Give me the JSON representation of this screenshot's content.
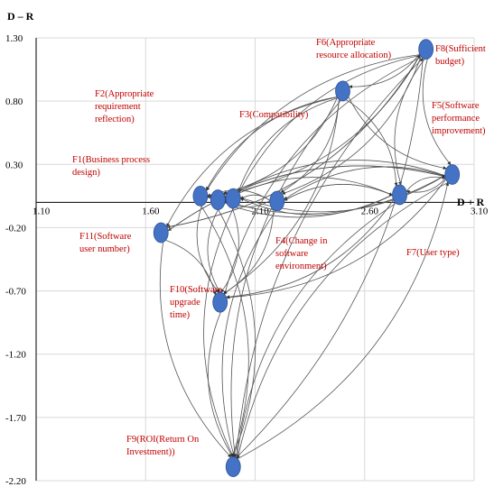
{
  "chart_data": {
    "type": "scatter",
    "xlabel": "D + R",
    "ylabel": "D – R",
    "xlim": [
      1.1,
      3.1
    ],
    "ylim": [
      -2.2,
      1.3
    ],
    "x_ticks": [
      "1.10",
      "1.60",
      "2.10",
      "2.60",
      "3.10"
    ],
    "y_ticks": [
      "1.30",
      "0.80",
      "0.30",
      "-0.20",
      "-0.70",
      "-1.20",
      "-1.70",
      "-2.20"
    ],
    "grid": true,
    "colors": {
      "node": "#4472c4",
      "label": "#c00000",
      "edge": "#555555"
    },
    "points": [
      {
        "id": "F1",
        "label": "F1(Business process design)",
        "x": 1.85,
        "y": 0.05
      },
      {
        "id": "F2",
        "label": "F2(Appropriate requirement reflection)",
        "x": 1.93,
        "y": 0.02
      },
      {
        "id": "F3",
        "label": "F3(Compatibility)",
        "x": 2.0,
        "y": 0.03
      },
      {
        "id": "F4",
        "label": "F4(Change in software environment)",
        "x": 2.2,
        "y": 0.01
      },
      {
        "id": "F5",
        "label": "F5(Software performance improvement)",
        "x": 3.0,
        "y": 0.22
      },
      {
        "id": "F6",
        "label": "F6(Appropriate resource allocation)",
        "x": 2.5,
        "y": 0.88
      },
      {
        "id": "F7",
        "label": "F7(User type)",
        "x": 2.76,
        "y": 0.06
      },
      {
        "id": "F8",
        "label": "F8(Sufficient budget)",
        "x": 2.88,
        "y": 1.21
      },
      {
        "id": "F9",
        "label": "F9(ROI(Return On Investment))",
        "x": 2.0,
        "y": -2.09
      },
      {
        "id": "F10",
        "label": "F10(Software upgrade time)",
        "x": 1.94,
        "y": -0.79
      },
      {
        "id": "F11",
        "label": "F11(Software user number)",
        "x": 1.67,
        "y": -0.24
      }
    ],
    "edges": [
      [
        "F8",
        "F1"
      ],
      [
        "F8",
        "F2"
      ],
      [
        "F8",
        "F3"
      ],
      [
        "F8",
        "F4"
      ],
      [
        "F8",
        "F5"
      ],
      [
        "F8",
        "F6"
      ],
      [
        "F8",
        "F7"
      ],
      [
        "F8",
        "F9"
      ],
      [
        "F8",
        "F10"
      ],
      [
        "F8",
        "F11"
      ],
      [
        "F6",
        "F1"
      ],
      [
        "F6",
        "F2"
      ],
      [
        "F6",
        "F3"
      ],
      [
        "F6",
        "F4"
      ],
      [
        "F6",
        "F5"
      ],
      [
        "F6",
        "F7"
      ],
      [
        "F6",
        "F9"
      ],
      [
        "F6",
        "F10"
      ],
      [
        "F6",
        "F11"
      ],
      [
        "F5",
        "F1"
      ],
      [
        "F5",
        "F2"
      ],
      [
        "F5",
        "F3"
      ],
      [
        "F5",
        "F4"
      ],
      [
        "F5",
        "F7"
      ],
      [
        "F5",
        "F9"
      ],
      [
        "F5",
        "F10"
      ],
      [
        "F5",
        "F11"
      ],
      [
        "F7",
        "F1"
      ],
      [
        "F7",
        "F2"
      ],
      [
        "F7",
        "F3"
      ],
      [
        "F7",
        "F4"
      ],
      [
        "F7",
        "F5"
      ],
      [
        "F7",
        "F9"
      ],
      [
        "F7",
        "F10"
      ],
      [
        "F4",
        "F1"
      ],
      [
        "F4",
        "F2"
      ],
      [
        "F4",
        "F3"
      ],
      [
        "F4",
        "F7"
      ],
      [
        "F4",
        "F9"
      ],
      [
        "F4",
        "F10"
      ],
      [
        "F3",
        "F1"
      ],
      [
        "F3",
        "F2"
      ],
      [
        "F3",
        "F9"
      ],
      [
        "F3",
        "F10"
      ],
      [
        "F2",
        "F1"
      ],
      [
        "F2",
        "F9"
      ],
      [
        "F2",
        "F10"
      ],
      [
        "F1",
        "F9"
      ],
      [
        "F1",
        "F10"
      ],
      [
        "F1",
        "F3"
      ],
      [
        "F11",
        "F9"
      ],
      [
        "F11",
        "F10"
      ],
      [
        "F11",
        "F8"
      ],
      [
        "F11",
        "F5"
      ],
      [
        "F10",
        "F9"
      ],
      [
        "F9",
        "F8"
      ],
      [
        "F9",
        "F5"
      ]
    ]
  }
}
